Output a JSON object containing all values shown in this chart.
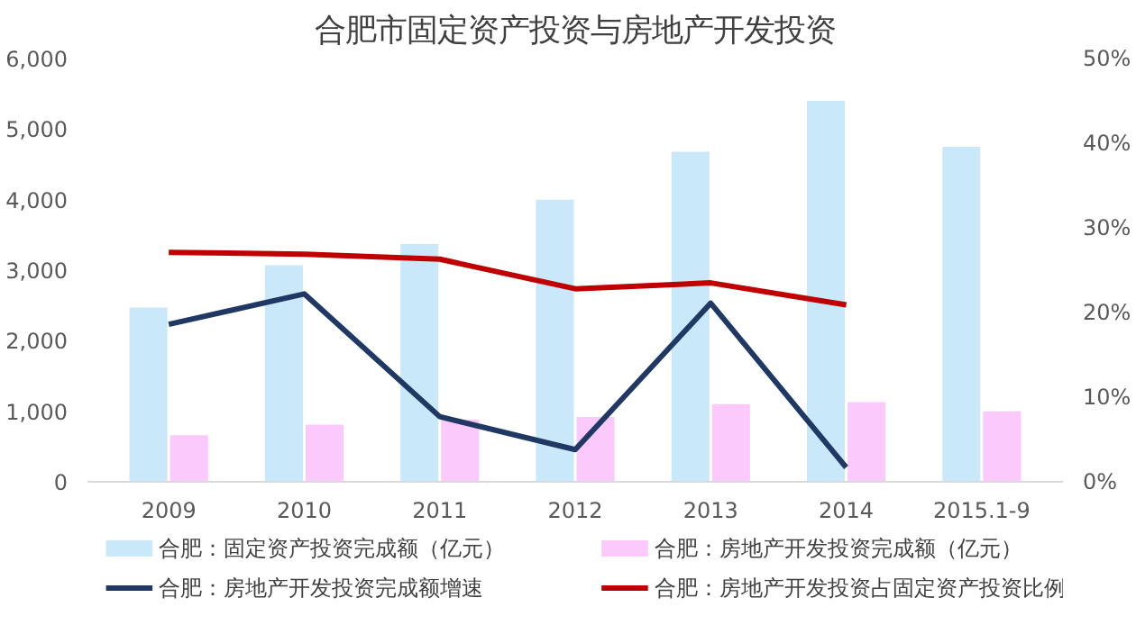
{
  "chart_data": {
    "type": "bar",
    "title": "合肥市固定资产投资与房地产开发投资",
    "categories": [
      "2009",
      "2010",
      "2011",
      "2012",
      "2013",
      "2014",
      "2015.1-9"
    ],
    "series": [
      {
        "name": "合肥：固定资产投资完成额（亿元）",
        "color": "#c9e8fa",
        "values": [
          2470,
          3070,
          3370,
          4000,
          4680,
          5400,
          4750
        ]
      },
      {
        "name": "合肥：房地产开发投资完成额（亿元）",
        "color": "#fbc9fb",
        "values": [
          660,
          810,
          880,
          920,
          1100,
          1130,
          1000
        ]
      },
      {
        "name": "合肥：房地产开发投资完成额增速",
        "type": "line",
        "axis": "y2",
        "color": "#1f3864",
        "values": [
          18.6,
          22.2,
          7.7,
          3.8,
          21.1,
          1.7,
          null
        ]
      },
      {
        "name": "合肥：房地产开发投资占固定资产投资比例",
        "type": "line",
        "axis": "y2",
        "color": "#c00000",
        "values": [
          27.1,
          26.9,
          26.3,
          22.8,
          23.5,
          20.9,
          null
        ]
      }
    ],
    "ylim": [
      0,
      6000
    ],
    "yticks": [
      0,
      {
        "value": 1000,
        "label": "1,000"
      },
      {
        "value": 2000,
        "label": "2,000"
      },
      {
        "value": 3000,
        "label": "3,000"
      },
      {
        "value": 4000,
        "label": "4,000"
      },
      {
        "value": 5000,
        "label": "5,000"
      },
      {
        "value": 6000,
        "label": "6,000"
      }
    ],
    "y2lim": [
      0,
      50
    ],
    "y2ticks": [
      {
        "value": 0,
        "label": "0%"
      },
      {
        "value": 10,
        "label": "10%"
      },
      {
        "value": 20,
        "label": "20%"
      },
      {
        "value": 30,
        "label": "30%"
      },
      {
        "value": 40,
        "label": "40%"
      },
      {
        "value": 50,
        "label": "50%"
      }
    ],
    "grid": false,
    "legend": "bottom",
    "marker": "none"
  }
}
